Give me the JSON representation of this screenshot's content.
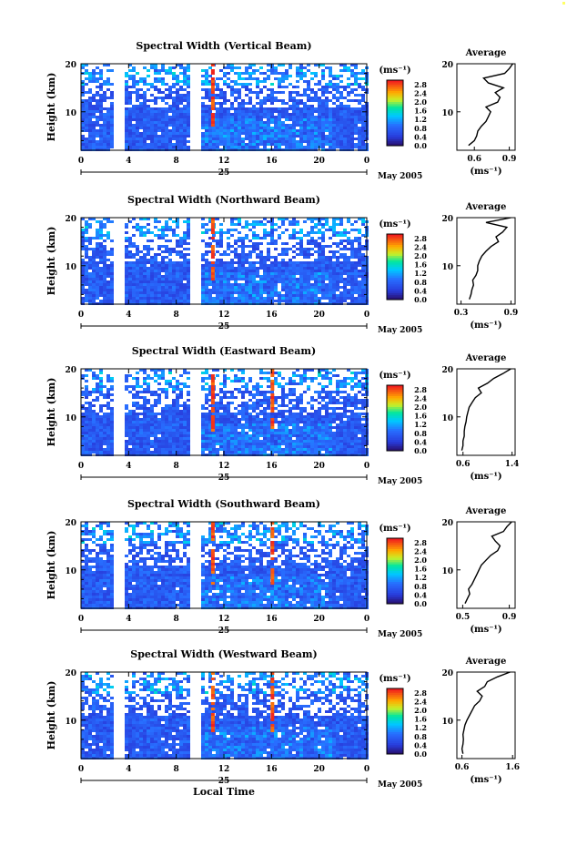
{
  "chart_data": [
    {
      "type": "heatmap",
      "title": "Spectral Width (Vertical Beam)",
      "ylabel": "Height (km)",
      "yticks": [
        "20",
        "10"
      ],
      "xticks": [
        "0",
        "4",
        "8",
        "12",
        "16",
        "20",
        "0"
      ],
      "xlim": [
        0,
        24
      ],
      "ylim": [
        2,
        20
      ],
      "day_label": "25",
      "date_label": "May 2005",
      "colorbar": {
        "unit": "(ms⁻¹)",
        "ticks": [
          "2.8",
          "2.4",
          "2.0",
          "1.6",
          "1.2",
          "0.8",
          "0.4",
          "0.0"
        ],
        "range": [
          0,
          3.0
        ]
      },
      "gaps": [
        3.1,
        9.5
      ],
      "spikes": [
        11.0
      ],
      "profile": {
        "title": "Average",
        "xlabel": "(ms⁻¹)",
        "xticks": [
          "0.6",
          "0.9"
        ],
        "xlim": [
          0.45,
          0.95
        ],
        "yticks": [
          "20",
          "10"
        ],
        "height": [
          3,
          4,
          5,
          6,
          7,
          8,
          9,
          10,
          11,
          12,
          13,
          14,
          15,
          16,
          17,
          18,
          19,
          20
        ],
        "width": [
          0.55,
          0.6,
          0.62,
          0.63,
          0.66,
          0.7,
          0.72,
          0.74,
          0.7,
          0.8,
          0.82,
          0.78,
          0.85,
          0.72,
          0.68,
          0.86,
          0.9,
          0.93
        ]
      }
    },
    {
      "type": "heatmap",
      "title": "Spectral Width (Northward Beam)",
      "ylabel": "Height (km)",
      "yticks": [
        "20",
        "10"
      ],
      "xticks": [
        "0",
        "4",
        "8",
        "12",
        "16",
        "20",
        "0"
      ],
      "xlim": [
        0,
        24
      ],
      "ylim": [
        2,
        20
      ],
      "day_label": "25",
      "date_label": "May 2005",
      "colorbar": {
        "unit": "(ms⁻¹)",
        "ticks": [
          "2.8",
          "2.4",
          "2.0",
          "1.6",
          "1.2",
          "0.8",
          "0.4",
          "0.0"
        ],
        "range": [
          0,
          3.0
        ]
      },
      "gaps": [
        3.1,
        9.5
      ],
      "spikes": [
        11.0
      ],
      "profile": {
        "title": "Average",
        "xlabel": "(ms⁻¹)",
        "xticks": [
          "0.3",
          "0.9"
        ],
        "xlim": [
          0.25,
          0.95
        ],
        "yticks": [
          "20",
          "10"
        ],
        "height": [
          3,
          4,
          5,
          6,
          7,
          8,
          9,
          10,
          11,
          12,
          13,
          14,
          15,
          16,
          17,
          18,
          19,
          20
        ],
        "width": [
          0.4,
          0.42,
          0.43,
          0.45,
          0.44,
          0.48,
          0.5,
          0.5,
          0.52,
          0.55,
          0.6,
          0.66,
          0.75,
          0.72,
          0.8,
          0.85,
          0.6,
          0.9
        ]
      }
    },
    {
      "type": "heatmap",
      "title": "Spectral Width (Eastward Beam)",
      "ylabel": "Height (km)",
      "yticks": [
        "20",
        "10"
      ],
      "xticks": [
        "0",
        "4",
        "8",
        "12",
        "16",
        "20",
        "0"
      ],
      "xlim": [
        0,
        24
      ],
      "ylim": [
        2,
        20
      ],
      "day_label": "25",
      "date_label": "May 2005",
      "colorbar": {
        "unit": "(ms⁻¹)",
        "ticks": [
          "2.8",
          "2.4",
          "2.0",
          "1.6",
          "1.2",
          "0.8",
          "0.4",
          "0.0"
        ],
        "range": [
          0,
          3.0
        ]
      },
      "gaps": [
        3.1,
        9.5
      ],
      "spikes": [
        11.0,
        16.0
      ],
      "profile": {
        "title": "Average",
        "xlabel": "(ms⁻¹)",
        "xticks": [
          "0.6",
          "1.4"
        ],
        "xlim": [
          0.5,
          1.45
        ],
        "yticks": [
          "20",
          "10"
        ],
        "height": [
          3,
          4,
          5,
          6,
          7,
          8,
          9,
          10,
          11,
          12,
          13,
          14,
          15,
          16,
          17,
          18,
          19,
          20
        ],
        "width": [
          0.58,
          0.6,
          0.6,
          0.62,
          0.62,
          0.63,
          0.65,
          0.66,
          0.68,
          0.7,
          0.75,
          0.8,
          0.9,
          0.85,
          1.0,
          1.1,
          1.25,
          1.38
        ]
      }
    },
    {
      "type": "heatmap",
      "title": "Spectral Width (Southward Beam)",
      "ylabel": "Height (km)",
      "yticks": [
        "20",
        "10"
      ],
      "xticks": [
        "0",
        "4",
        "8",
        "12",
        "16",
        "20",
        "0"
      ],
      "xlim": [
        0,
        24
      ],
      "ylim": [
        2,
        20
      ],
      "day_label": "25",
      "date_label": "May 2005",
      "colorbar": {
        "unit": "(ms⁻¹)",
        "ticks": [
          "2.8",
          "2.4",
          "2.0",
          "1.6",
          "1.2",
          "0.8",
          "0.4",
          "0.0"
        ],
        "range": [
          0,
          3.0
        ]
      },
      "gaps": [
        3.1,
        9.5
      ],
      "spikes": [
        11.0,
        16.0
      ],
      "profile": {
        "title": "Average",
        "xlabel": "(ms⁻¹)",
        "xticks": [
          "0.5",
          "0.9"
        ],
        "xlim": [
          0.45,
          0.95
        ],
        "yticks": [
          "20",
          "10"
        ],
        "height": [
          3,
          4,
          5,
          6,
          7,
          8,
          9,
          10,
          11,
          12,
          13,
          14,
          15,
          16,
          17,
          18,
          19,
          20
        ],
        "width": [
          0.52,
          0.54,
          0.56,
          0.55,
          0.58,
          0.6,
          0.62,
          0.64,
          0.66,
          0.7,
          0.74,
          0.8,
          0.82,
          0.78,
          0.75,
          0.85,
          0.88,
          0.92
        ]
      }
    },
    {
      "type": "heatmap",
      "title": "Spectral Width (Westward Beam)",
      "ylabel": "Height (km)",
      "yticks": [
        "20",
        "10"
      ],
      "xticks": [
        "0",
        "4",
        "8",
        "12",
        "16",
        "20",
        "0"
      ],
      "xlim": [
        0,
        24
      ],
      "ylim": [
        2,
        20
      ],
      "day_label": "25",
      "date_label": "May 2005",
      "xlabel": "Local Time",
      "colorbar": {
        "unit": "(ms⁻¹)",
        "ticks": [
          "2.8",
          "2.4",
          "2.0",
          "1.6",
          "1.2",
          "0.8",
          "0.4",
          "0.0"
        ],
        "range": [
          0,
          3.0
        ]
      },
      "gaps": [
        3.1,
        9.5
      ],
      "spikes": [
        11.0,
        16.0
      ],
      "profile": {
        "title": "Average",
        "xlabel": "(ms⁻¹)",
        "xticks": [
          "0.6",
          "1.6"
        ],
        "xlim": [
          0.5,
          1.65
        ],
        "yticks": [
          "20",
          "10"
        ],
        "height": [
          3,
          4,
          5,
          6,
          7,
          8,
          9,
          10,
          11,
          12,
          13,
          14,
          15,
          16,
          17,
          18,
          19,
          20
        ],
        "width": [
          0.62,
          0.6,
          0.62,
          0.63,
          0.62,
          0.64,
          0.66,
          0.7,
          0.75,
          0.8,
          0.85,
          0.95,
          1.0,
          0.9,
          1.05,
          1.1,
          1.3,
          1.55
        ]
      }
    }
  ]
}
